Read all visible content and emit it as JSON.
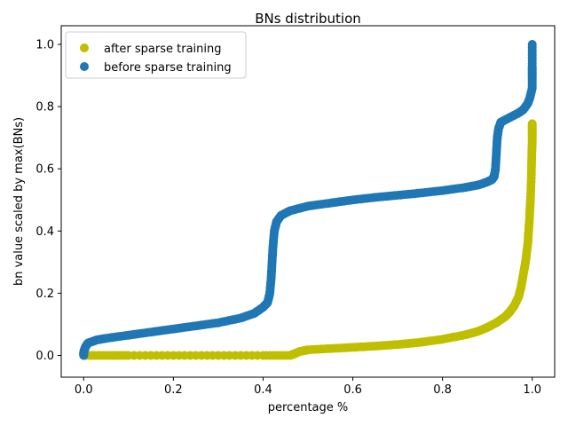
{
  "chart_data": {
    "type": "scatter",
    "title": "BNs distribution",
    "xlabel": "percentage %",
    "ylabel": "bn value scaled by max(BNs)",
    "xlim": [
      -0.05,
      1.05
    ],
    "ylim": [
      -0.07,
      1.06
    ],
    "x_ticks": [
      "0.0",
      "0.2",
      "0.4",
      "0.6",
      "0.8",
      "1.0"
    ],
    "y_ticks": [
      "0.0",
      "0.2",
      "0.4",
      "0.6",
      "0.8",
      "1.0"
    ],
    "grid": false,
    "legend_position": "top-left",
    "series": [
      {
        "name": "after sparse training",
        "color": "#bfbf00",
        "points": [
          [
            0.0,
            0.0
          ],
          [
            0.05,
            0.0
          ],
          [
            0.1,
            0.0
          ],
          [
            0.2,
            0.0
          ],
          [
            0.3,
            0.0
          ],
          [
            0.4,
            0.0
          ],
          [
            0.46,
            0.0
          ],
          [
            0.47,
            0.005
          ],
          [
            0.48,
            0.012
          ],
          [
            0.5,
            0.018
          ],
          [
            0.55,
            0.022
          ],
          [
            0.6,
            0.026
          ],
          [
            0.65,
            0.03
          ],
          [
            0.7,
            0.035
          ],
          [
            0.75,
            0.042
          ],
          [
            0.8,
            0.052
          ],
          [
            0.85,
            0.066
          ],
          [
            0.88,
            0.078
          ],
          [
            0.9,
            0.09
          ],
          [
            0.92,
            0.105
          ],
          [
            0.94,
            0.125
          ],
          [
            0.95,
            0.14
          ],
          [
            0.96,
            0.16
          ],
          [
            0.97,
            0.19
          ],
          [
            0.975,
            0.22
          ],
          [
            0.98,
            0.26
          ],
          [
            0.985,
            0.3
          ],
          [
            0.99,
            0.36
          ],
          [
            0.993,
            0.42
          ],
          [
            0.996,
            0.5
          ],
          [
            0.998,
            0.58
          ],
          [
            0.999,
            0.65
          ],
          [
            1.0,
            0.69
          ],
          [
            1.0,
            0.72
          ],
          [
            1.0,
            0.745
          ]
        ]
      },
      {
        "name": "before sparse training",
        "color": "#1f77b4",
        "points": [
          [
            0.0,
            0.0
          ],
          [
            0.0,
            0.01
          ],
          [
            0.002,
            0.02
          ],
          [
            0.005,
            0.03
          ],
          [
            0.01,
            0.04
          ],
          [
            0.03,
            0.05
          ],
          [
            0.05,
            0.055
          ],
          [
            0.1,
            0.065
          ],
          [
            0.15,
            0.075
          ],
          [
            0.2,
            0.085
          ],
          [
            0.25,
            0.095
          ],
          [
            0.3,
            0.105
          ],
          [
            0.35,
            0.12
          ],
          [
            0.38,
            0.135
          ],
          [
            0.4,
            0.155
          ],
          [
            0.41,
            0.17
          ],
          [
            0.415,
            0.2
          ],
          [
            0.418,
            0.25
          ],
          [
            0.42,
            0.3
          ],
          [
            0.422,
            0.35
          ],
          [
            0.425,
            0.4
          ],
          [
            0.43,
            0.43
          ],
          [
            0.44,
            0.45
          ],
          [
            0.46,
            0.465
          ],
          [
            0.5,
            0.48
          ],
          [
            0.55,
            0.49
          ],
          [
            0.6,
            0.5
          ],
          [
            0.65,
            0.508
          ],
          [
            0.7,
            0.515
          ],
          [
            0.75,
            0.522
          ],
          [
            0.8,
            0.53
          ],
          [
            0.85,
            0.54
          ],
          [
            0.88,
            0.548
          ],
          [
            0.9,
            0.558
          ],
          [
            0.91,
            0.565
          ],
          [
            0.915,
            0.575
          ],
          [
            0.918,
            0.6
          ],
          [
            0.92,
            0.65
          ],
          [
            0.922,
            0.7
          ],
          [
            0.925,
            0.73
          ],
          [
            0.93,
            0.75
          ],
          [
            0.95,
            0.765
          ],
          [
            0.97,
            0.78
          ],
          [
            0.98,
            0.79
          ],
          [
            0.99,
            0.81
          ],
          [
            0.995,
            0.83
          ],
          [
            1.0,
            0.86
          ],
          [
            1.0,
            0.9
          ],
          [
            1.0,
            0.93
          ],
          [
            1.0,
            1.0
          ]
        ]
      }
    ]
  }
}
